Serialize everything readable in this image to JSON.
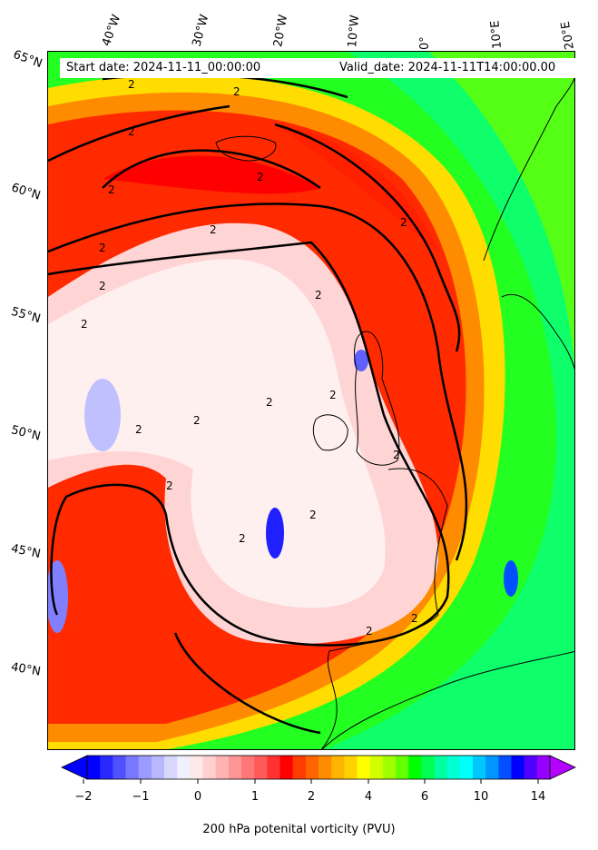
{
  "header": {
    "start_date": "Start date: 2024-11-11_00:00:00",
    "valid_date": "Valid_date: 2024-11-11T14:00:00.00"
  },
  "longitude_labels": [
    "40°W",
    "30°W",
    "20°W",
    "10°W",
    "0°",
    "10°E",
    "20°E"
  ],
  "latitude_labels": [
    "65°N",
    "60°N",
    "55°N",
    "50°N",
    "45°N",
    "40°N"
  ],
  "contour_label": "2",
  "colorbar": {
    "title": "200 hPa potenital vorticity (PVU)",
    "tick_labels": [
      "−2",
      "−1",
      "0",
      "1",
      "2",
      "4",
      "6",
      "10",
      "14"
    ],
    "colors": [
      "#0000ff",
      "#2828ff",
      "#5050ff",
      "#7878ff",
      "#9a9aff",
      "#b8b8ff",
      "#d8d8ff",
      "#f0f0ff",
      "#ffe8e8",
      "#ffd0d0",
      "#ffb4b4",
      "#ff9696",
      "#ff7878",
      "#ff5a5a",
      "#ff3232",
      "#ff0000",
      "#ff3c00",
      "#ff6400",
      "#ff8c00",
      "#ffb400",
      "#ffd200",
      "#ffff00",
      "#d2ff00",
      "#a0ff00",
      "#64ff00",
      "#00ff00",
      "#00ff50",
      "#00ffa0",
      "#00ffd2",
      "#00ffff",
      "#00c8ff",
      "#0096ff",
      "#0050ff",
      "#0000ff",
      "#5000ff",
      "#9600ff"
    ]
  },
  "colors": {
    "background_field": "#00ff40",
    "high_pv": "#ff0000",
    "contour": "#000000"
  }
}
